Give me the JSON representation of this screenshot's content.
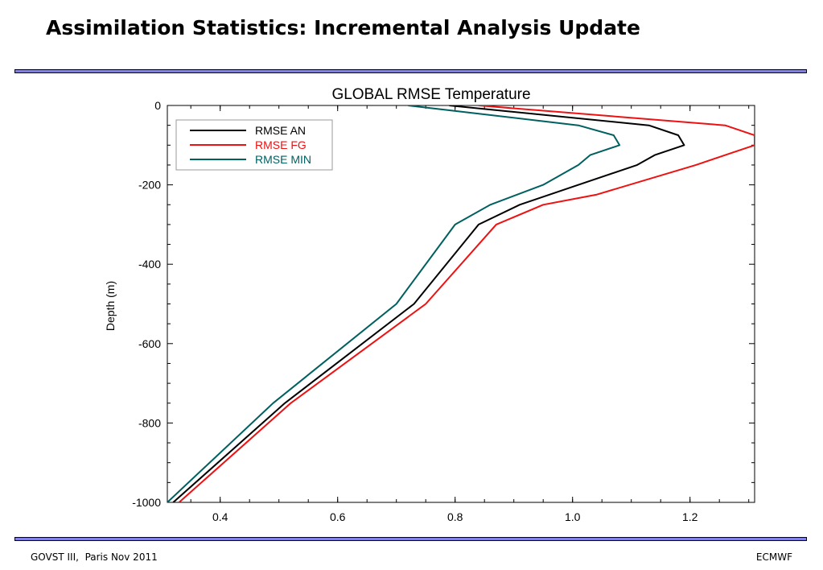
{
  "slide": {
    "title": "Assimilation Statistics: Incremental Analysis Update",
    "footer_left": "GOVST III,  Paris Nov 2011",
    "footer_right": "ECMWF",
    "rule_color": "#8080e8"
  },
  "chart_data": {
    "type": "line",
    "title": "GLOBAL RMSE Temperature",
    "xlabel": "",
    "ylabel": "Depth (m)",
    "xlim": [
      0.31,
      1.31
    ],
    "ylim": [
      -1000,
      0
    ],
    "xticks": [
      0.4,
      0.6,
      0.8,
      1.0,
      1.2
    ],
    "xtick_labels": [
      "0.4",
      "0.6",
      "0.8",
      "1.0",
      "1.2"
    ],
    "yticks": [
      0,
      -200,
      -400,
      -600,
      -800,
      -1000
    ],
    "ytick_labels": [
      "0",
      "-200",
      "-400",
      "-600",
      "-800",
      "-1000"
    ],
    "grid": false,
    "legend_position": "top-left",
    "series": [
      {
        "name": "RMSE AN",
        "color": "#000000",
        "points": [
          [
            0.79,
            0
          ],
          [
            1.13,
            -50
          ],
          [
            1.18,
            -75
          ],
          [
            1.19,
            -100
          ],
          [
            1.14,
            -125
          ],
          [
            1.11,
            -150
          ],
          [
            1.01,
            -200
          ],
          [
            0.91,
            -250
          ],
          [
            0.84,
            -300
          ],
          [
            0.73,
            -500
          ],
          [
            0.51,
            -750
          ],
          [
            0.32,
            -1000
          ]
        ]
      },
      {
        "name": "RMSE FG",
        "color": "#ee1111",
        "points": [
          [
            0.84,
            0
          ],
          [
            1.26,
            -50
          ],
          [
            1.31,
            -75
          ],
          [
            1.31,
            -100
          ],
          [
            1.26,
            -125
          ],
          [
            1.21,
            -150
          ],
          [
            1.04,
            -225
          ],
          [
            0.95,
            -250
          ],
          [
            0.87,
            -300
          ],
          [
            0.75,
            -500
          ],
          [
            0.52,
            -750
          ],
          [
            0.33,
            -1000
          ]
        ]
      },
      {
        "name": "RMSE MIN",
        "color": "#006060",
        "points": [
          [
            0.72,
            0
          ],
          [
            1.01,
            -50
          ],
          [
            1.07,
            -75
          ],
          [
            1.08,
            -100
          ],
          [
            1.03,
            -125
          ],
          [
            1.01,
            -150
          ],
          [
            0.95,
            -200
          ],
          [
            0.86,
            -250
          ],
          [
            0.8,
            -300
          ],
          [
            0.7,
            -500
          ],
          [
            0.49,
            -750
          ],
          [
            0.31,
            -1000
          ]
        ]
      }
    ]
  }
}
